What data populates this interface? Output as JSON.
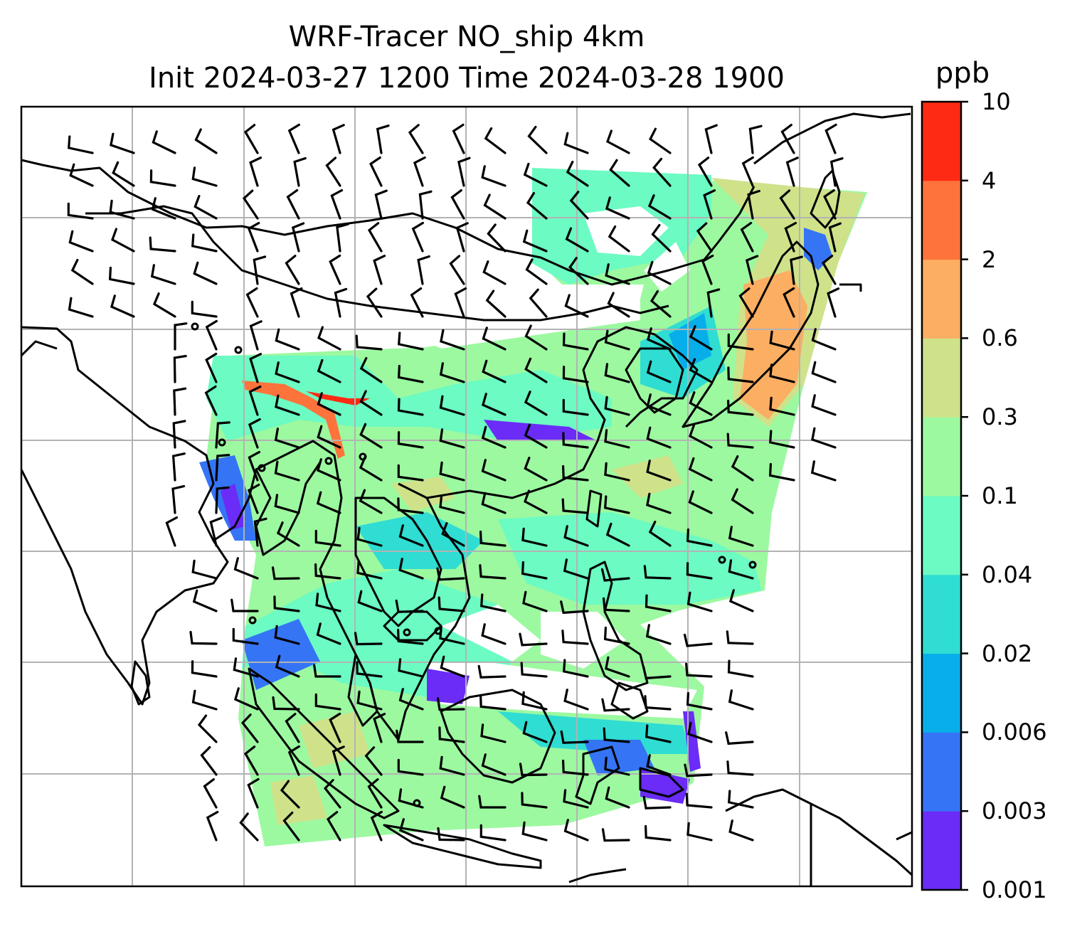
{
  "title": {
    "line1": "WRF-Tracer NO_ship 4km",
    "line2": "Init 2024-03-27 1200 Time 2024-03-28 1900"
  },
  "colorbar": {
    "unit": "ppb",
    "ticks": [
      "0.001",
      "0.003",
      "0.006",
      "0.02",
      "0.04",
      "0.1",
      "0.3",
      "0.6",
      "2",
      "4",
      "10"
    ],
    "colors": [
      "#6a2cf6",
      "#3574f5",
      "#08aee9",
      "#2fddd3",
      "#6bfbc3",
      "#9cf9a0",
      "#cfe28a",
      "#fcae63",
      "#fe733b",
      "#ff2a14"
    ]
  },
  "map": {
    "gridlines": true,
    "coastline_color": "#000000",
    "barb_color": "#000000",
    "grid_color": "#b3b3b3"
  }
}
